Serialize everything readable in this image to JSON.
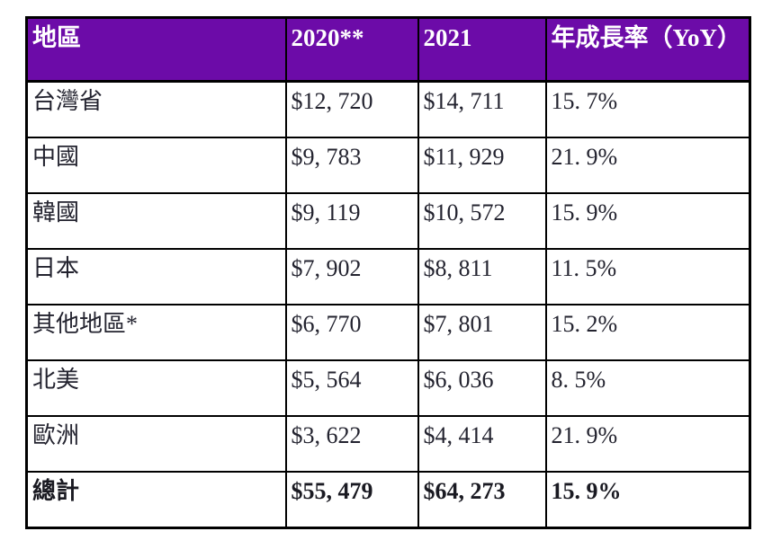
{
  "table": {
    "name": "regional-revenue-table",
    "columns": [
      {
        "label": "地區"
      },
      {
        "label": "2020**"
      },
      {
        "label": "2021"
      },
      {
        "label": "年成長率（YoY）"
      }
    ],
    "rows": [
      {
        "region": "台灣省",
        "y2020": "$12, 720",
        "y2021": "$14, 711",
        "yoy": "15. 7%",
        "bold": false
      },
      {
        "region": "中國",
        "y2020": "$9, 783",
        "y2021": "$11, 929",
        "yoy": "21. 9%",
        "bold": false
      },
      {
        "region": "韓國",
        "y2020": "$9, 119",
        "y2021": "$10, 572",
        "yoy": "15. 9%",
        "bold": false
      },
      {
        "region": "日本",
        "y2020": "$7, 902",
        "y2021": "$8, 811",
        "yoy": "11. 5%",
        "bold": false
      },
      {
        "region": "其他地區*",
        "y2020": "$6, 770",
        "y2021": "$7, 801",
        "yoy": "15. 2%",
        "bold": false
      },
      {
        "region": "北美",
        "y2020": "$5, 564",
        "y2021": "$6, 036",
        "yoy": "8. 5%",
        "bold": false
      },
      {
        "region": "歐洲",
        "y2020": "$3, 622",
        "y2021": "$4, 414",
        "yoy": "21. 9%",
        "bold": false
      },
      {
        "region": "總計",
        "y2020": "$55, 479",
        "y2021": "$64, 273",
        "yoy": "15. 9%",
        "bold": true
      }
    ],
    "colors": {
      "header_bg": "#6C0BA8",
      "header_text": "#FFFFFF",
      "body_text": "#23232F",
      "border": "#000000"
    }
  }
}
